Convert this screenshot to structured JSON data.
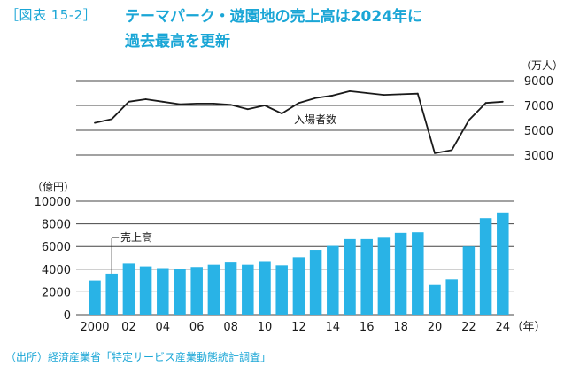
{
  "header": {
    "figure_label": "［図表 15-2］",
    "title_line1": "テーマパーク・遊園地の売上高は2024年に",
    "title_line2": "過去最高を更新"
  },
  "source": "（出所）経済産業省「特定サービス産業動態統計調査」",
  "colors": {
    "accent": "#1aa6d6",
    "bar": "#29b3e6",
    "line": "#1a1a1a",
    "grid": "#444444"
  },
  "chart_data": [
    {
      "type": "line",
      "name": "入場者数",
      "annotation": "入場者数",
      "unit_label": "（万人）",
      "x": [
        2000,
        2001,
        2002,
        2003,
        2004,
        2005,
        2006,
        2007,
        2008,
        2009,
        2010,
        2011,
        2012,
        2013,
        2014,
        2015,
        2016,
        2017,
        2018,
        2019,
        2020,
        2021,
        2022,
        2023,
        2024
      ],
      "values": [
        5600,
        5900,
        7300,
        7500,
        7300,
        7100,
        7150,
        7150,
        7050,
        6700,
        7000,
        6350,
        7200,
        7600,
        7800,
        8150,
        8000,
        7850,
        7900,
        7950,
        3150,
        3400,
        5800,
        7200,
        7300
      ],
      "ylim": [
        3000,
        9000
      ],
      "yticks": [
        3000,
        5000,
        7000,
        9000
      ],
      "ytick_labels": [
        "3000",
        "5000",
        "7000",
        "9000"
      ]
    },
    {
      "type": "bar",
      "name": "売上高",
      "annotation": "売上高",
      "unit_label": "（億円）",
      "x": [
        2000,
        2001,
        2002,
        2003,
        2004,
        2005,
        2006,
        2007,
        2008,
        2009,
        2010,
        2011,
        2012,
        2013,
        2014,
        2015,
        2016,
        2017,
        2018,
        2019,
        2020,
        2021,
        2022,
        2023,
        2024
      ],
      "values": [
        3000,
        3600,
        4500,
        4250,
        4100,
        4050,
        4200,
        4400,
        4600,
        4400,
        4650,
        4350,
        5050,
        5700,
        6050,
        6650,
        6650,
        6850,
        7200,
        7250,
        2600,
        3100,
        6000,
        8500,
        9000
      ],
      "ylim": [
        0,
        10000
      ],
      "yticks": [
        0,
        2000,
        4000,
        6000,
        8000,
        10000
      ],
      "ytick_labels": [
        "0",
        "2000",
        "4000",
        "6000",
        "8000",
        "10000"
      ],
      "xtick_positions": [
        2000,
        2002,
        2004,
        2006,
        2008,
        2010,
        2012,
        2014,
        2016,
        2018,
        2020,
        2022,
        2024
      ],
      "xtick_labels": [
        "2000",
        "02",
        "04",
        "06",
        "08",
        "10",
        "12",
        "14",
        "16",
        "18",
        "20",
        "22",
        "24"
      ],
      "xlabel_unit": "（年）"
    }
  ]
}
